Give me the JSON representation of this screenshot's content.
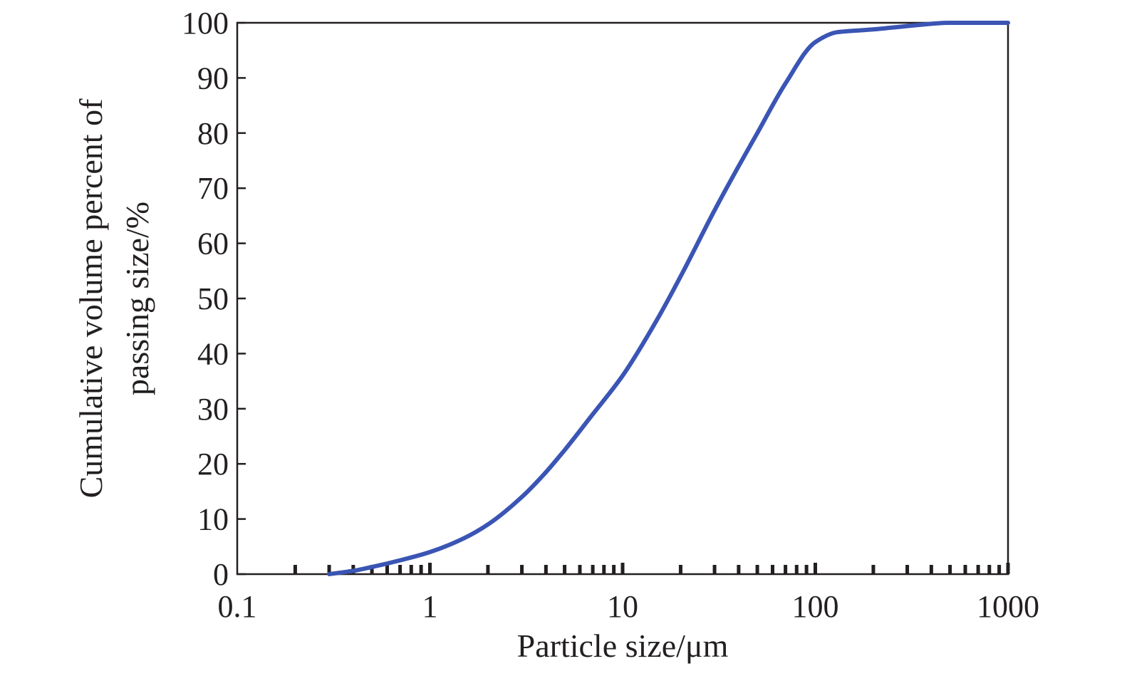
{
  "chart_data": {
    "type": "line",
    "xlabel": "Particle size/μm",
    "ylabel_line1": "Cumulative volume percent of",
    "ylabel_line2": "passing size/%",
    "x_scale": "log",
    "xlim": [
      0.1,
      1000
    ],
    "ylim": [
      0,
      100
    ],
    "x_ticks": [
      0.1,
      1,
      10,
      100,
      1000
    ],
    "x_tick_labels": [
      "0.1",
      "1",
      "10",
      "100",
      "1000"
    ],
    "y_ticks": [
      0,
      10,
      20,
      30,
      40,
      50,
      60,
      70,
      80,
      90,
      100
    ],
    "y_tick_labels": [
      "0",
      "10",
      "20",
      "30",
      "40",
      "50",
      "60",
      "70",
      "80",
      "90",
      "100"
    ],
    "grid": false,
    "series": [
      {
        "color": "#3a55b4",
        "x": [
          0.3,
          0.4,
          0.5,
          0.7,
          1,
          1.5,
          2,
          3,
          4,
          5,
          7,
          10,
          15,
          20,
          30,
          40,
          50,
          70,
          100,
          130,
          150,
          200,
          300,
          500,
          1000
        ],
        "y": [
          0,
          0.6,
          1.3,
          2.5,
          4,
          6.5,
          9,
          14,
          18.5,
          22.5,
          29,
          36,
          46,
          54,
          66,
          74,
          80,
          89,
          96.5,
          98.3,
          98.5,
          98.8,
          99.4,
          100,
          100
        ]
      }
    ]
  }
}
